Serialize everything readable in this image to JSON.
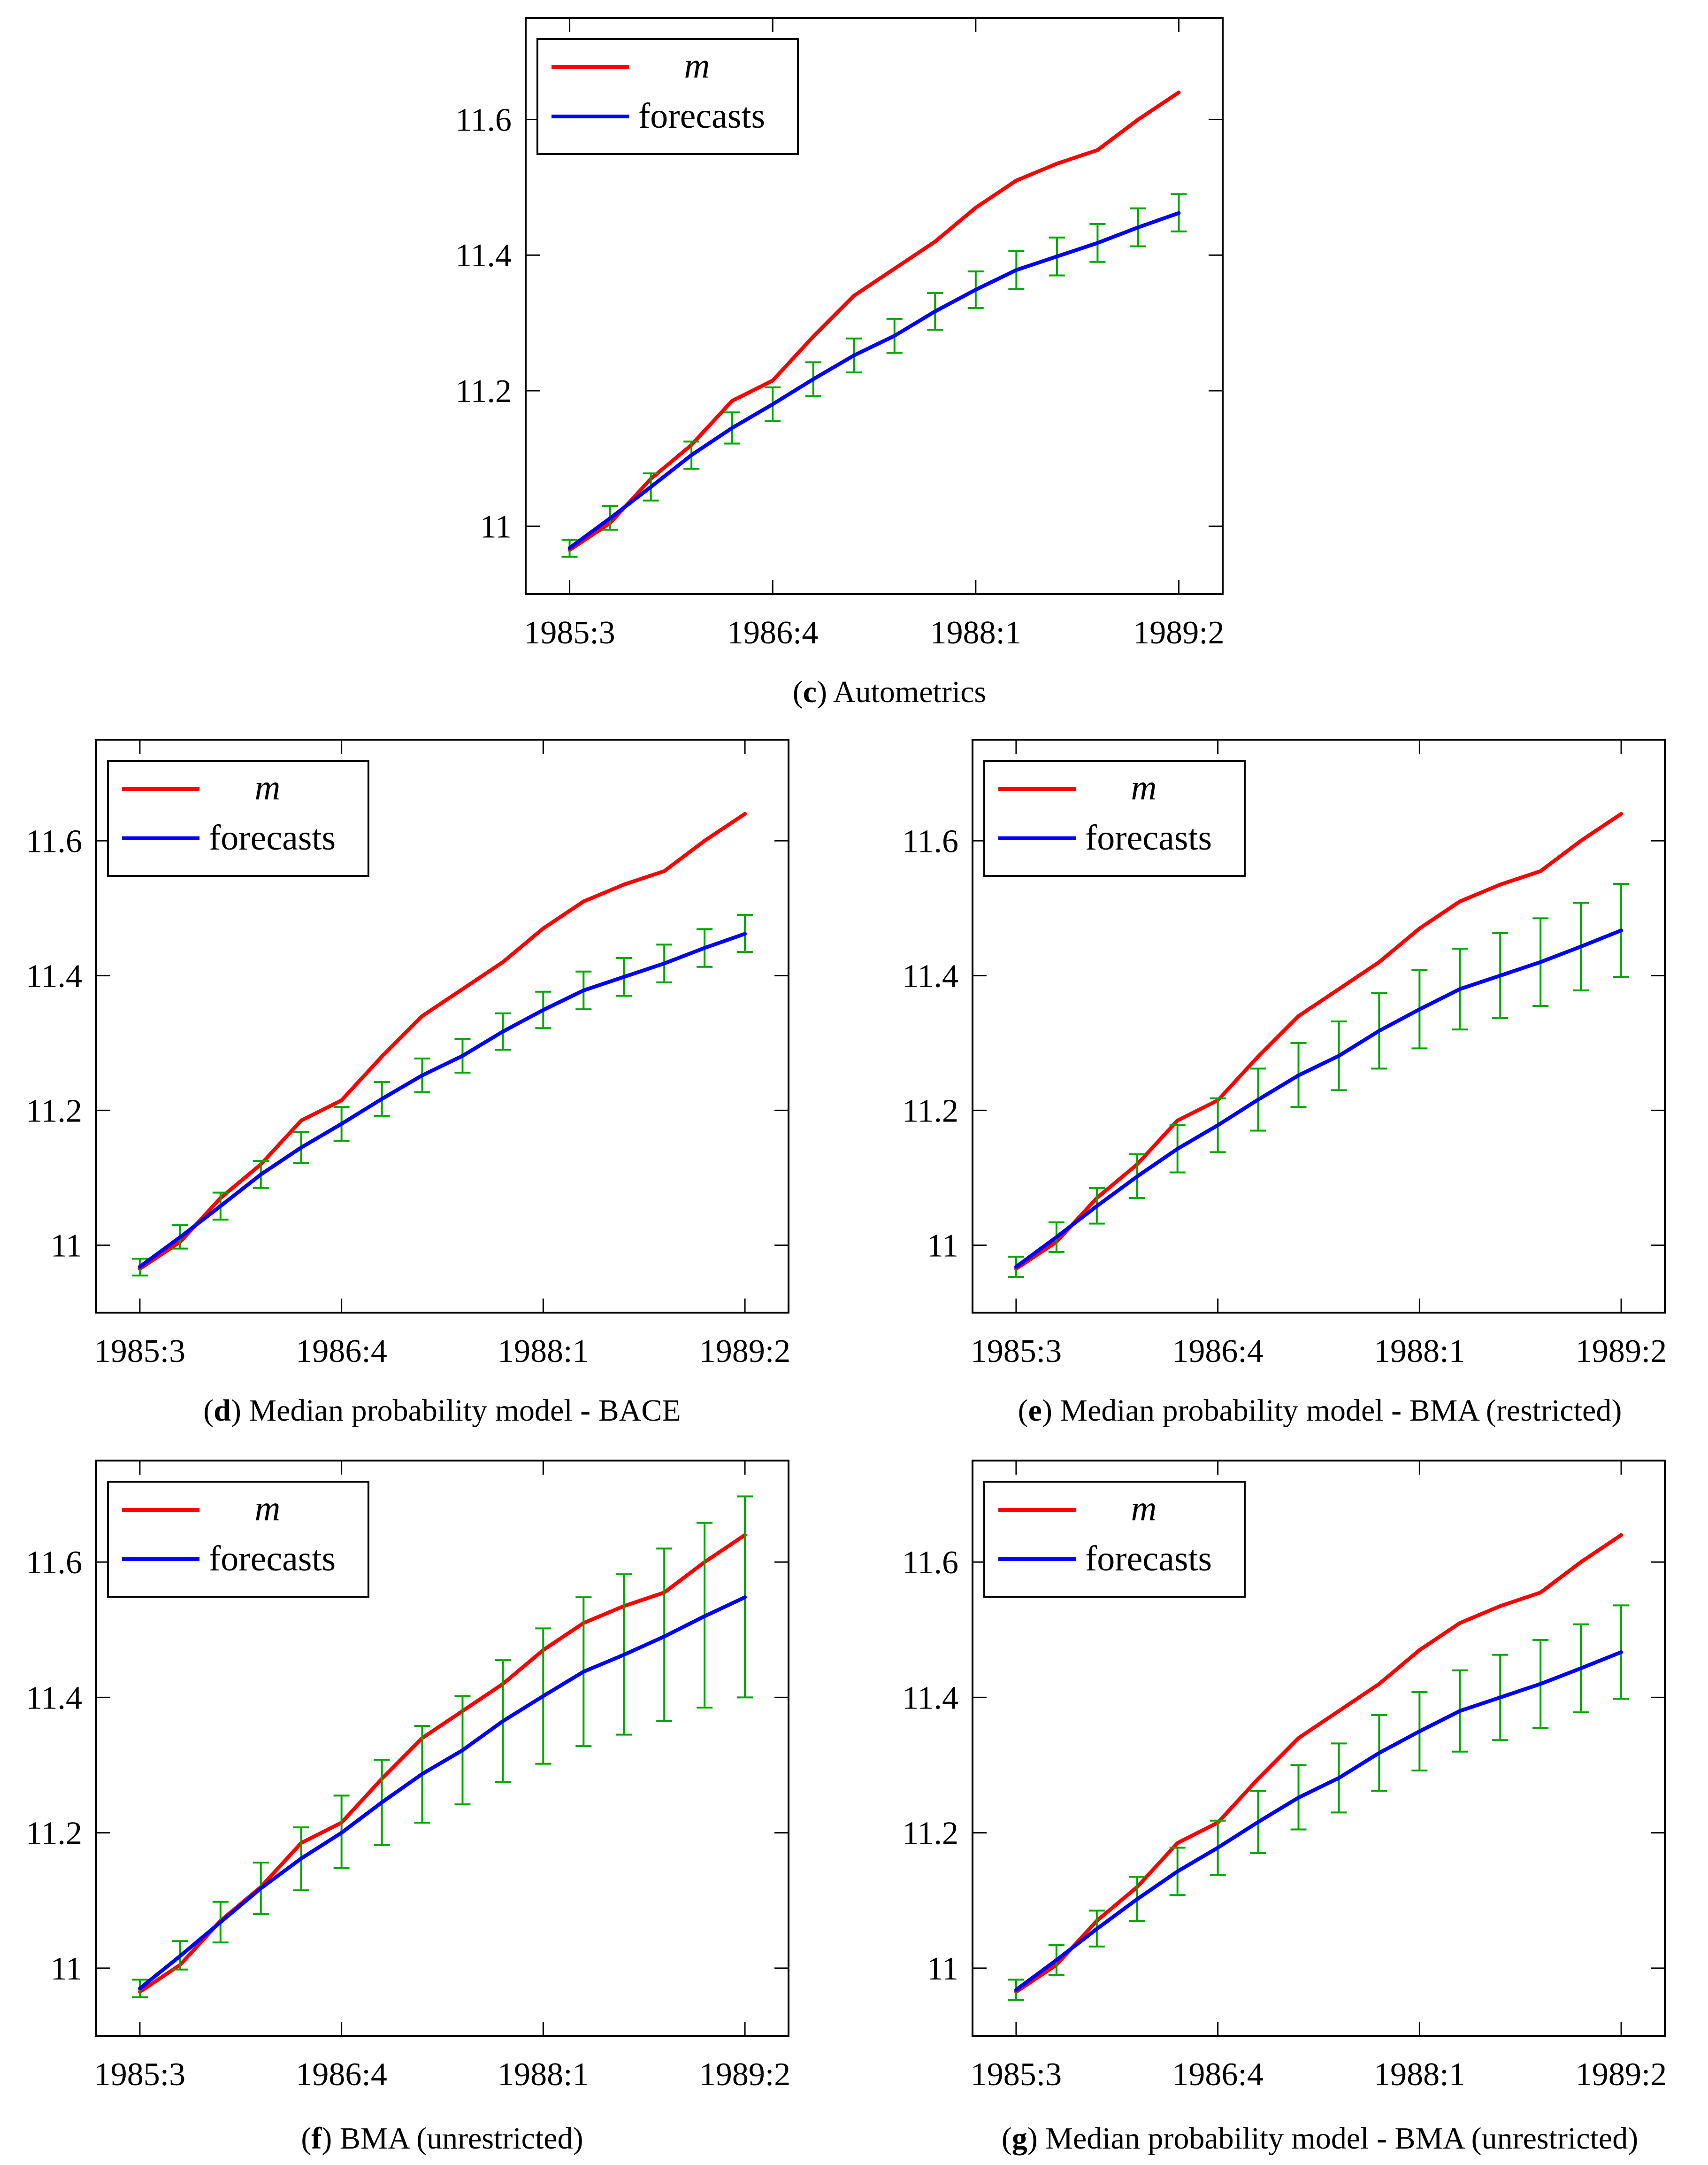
{
  "chart_data": [
    {
      "id": "c",
      "type": "line",
      "caption_letter": "c",
      "caption_text": "Autometrics",
      "x_tick_labels": [
        "1985:3",
        "1986:4",
        "1988:1",
        "1989:2"
      ],
      "y_tick_labels": [
        "11",
        "11.2",
        "11.4",
        "11.6"
      ],
      "y_ticks": [
        11,
        11.2,
        11.4,
        11.6
      ],
      "ylim": [
        10.9,
        11.75
      ],
      "legend": [
        "m",
        "forecasts"
      ],
      "legend_position": "top-left",
      "series": [
        {
          "name": "m",
          "color": "#ff0000",
          "values": [
            10.965,
            11.005,
            11.07,
            11.12,
            11.185,
            11.215,
            11.28,
            11.34,
            11.38,
            11.42,
            11.47,
            11.51,
            11.535,
            11.555,
            11.6,
            11.64
          ]
        },
        {
          "name": "forecasts",
          "color": "#0000ff",
          "values": [
            10.968,
            11.012,
            11.058,
            11.105,
            11.145,
            11.18,
            11.217,
            11.252,
            11.281,
            11.317,
            11.349,
            11.378,
            11.398,
            11.418,
            11.441,
            11.462
          ],
          "lower": [
            10.955,
            10.995,
            11.038,
            11.085,
            11.122,
            11.155,
            11.192,
            11.227,
            11.256,
            11.29,
            11.322,
            11.35,
            11.37,
            11.39,
            11.413,
            11.435
          ],
          "upper": [
            10.98,
            11.03,
            11.078,
            11.125,
            11.168,
            11.205,
            11.242,
            11.277,
            11.306,
            11.344,
            11.376,
            11.406,
            11.426,
            11.446,
            11.469,
            11.49
          ]
        }
      ]
    },
    {
      "id": "d",
      "type": "line",
      "caption_letter": "d",
      "caption_text": "Median probability model - BACE",
      "x_tick_labels": [
        "1985:3",
        "1986:4",
        "1988:1",
        "1989:2"
      ],
      "y_tick_labels": [
        "11",
        "11.2",
        "11.4",
        "11.6"
      ],
      "y_ticks": [
        11,
        11.2,
        11.4,
        11.6
      ],
      "ylim": [
        10.9,
        11.75
      ],
      "legend": [
        "m",
        "forecasts"
      ],
      "legend_position": "top-left",
      "series": [
        {
          "name": "m",
          "color": "#ff0000",
          "values": [
            10.965,
            11.005,
            11.07,
            11.12,
            11.185,
            11.215,
            11.28,
            11.34,
            11.38,
            11.42,
            11.47,
            11.51,
            11.535,
            11.555,
            11.6,
            11.64
          ]
        },
        {
          "name": "forecasts",
          "color": "#0000ff",
          "values": [
            10.968,
            11.012,
            11.058,
            11.105,
            11.145,
            11.18,
            11.217,
            11.252,
            11.281,
            11.317,
            11.349,
            11.378,
            11.398,
            11.418,
            11.441,
            11.462
          ],
          "lower": [
            10.955,
            10.995,
            11.038,
            11.085,
            11.122,
            11.155,
            11.192,
            11.227,
            11.256,
            11.29,
            11.322,
            11.35,
            11.37,
            11.39,
            11.413,
            11.435
          ],
          "upper": [
            10.98,
            11.03,
            11.078,
            11.125,
            11.168,
            11.205,
            11.242,
            11.277,
            11.306,
            11.344,
            11.376,
            11.406,
            11.426,
            11.446,
            11.469,
            11.49
          ]
        }
      ]
    },
    {
      "id": "e",
      "type": "line",
      "caption_letter": "e",
      "caption_text": "Median probability model - BMA (restricted)",
      "x_tick_labels": [
        "1985:3",
        "1986:4",
        "1988:1",
        "1989:2"
      ],
      "y_tick_labels": [
        "11",
        "11.2",
        "11.4",
        "11.6"
      ],
      "y_ticks": [
        11,
        11.2,
        11.4,
        11.6
      ],
      "ylim": [
        10.9,
        11.75
      ],
      "legend": [
        "m",
        "forecasts"
      ],
      "legend_position": "top-left",
      "series": [
        {
          "name": "m",
          "color": "#ff0000",
          "values": [
            10.965,
            11.005,
            11.07,
            11.12,
            11.185,
            11.215,
            11.28,
            11.34,
            11.38,
            11.42,
            11.47,
            11.51,
            11.535,
            11.555,
            11.6,
            11.64
          ]
        },
        {
          "name": "forecasts",
          "color": "#0000ff",
          "values": [
            10.968,
            11.012,
            11.058,
            11.102,
            11.143,
            11.178,
            11.216,
            11.252,
            11.281,
            11.318,
            11.35,
            11.38,
            11.4,
            11.42,
            11.443,
            11.467
          ],
          "lower": [
            10.953,
            10.99,
            11.032,
            11.07,
            11.108,
            11.138,
            11.17,
            11.205,
            11.23,
            11.262,
            11.292,
            11.32,
            11.337,
            11.355,
            11.378,
            11.398
          ],
          "upper": [
            10.983,
            11.034,
            11.085,
            11.135,
            11.178,
            11.218,
            11.262,
            11.3,
            11.332,
            11.374,
            11.408,
            11.44,
            11.463,
            11.485,
            11.508,
            11.536
          ]
        }
      ]
    },
    {
      "id": "f",
      "type": "line",
      "caption_letter": "f",
      "caption_text": "BMA (unrestricted)",
      "x_tick_labels": [
        "1985:3",
        "1986:4",
        "1988:1",
        "1989:2"
      ],
      "y_tick_labels": [
        "11",
        "11.2",
        "11.4",
        "11.6"
      ],
      "y_ticks": [
        11,
        11.2,
        11.4,
        11.6
      ],
      "ylim": [
        10.9,
        11.75
      ],
      "legend": [
        "m",
        "forecasts"
      ],
      "legend_position": "top-left",
      "series": [
        {
          "name": "m",
          "color": "#ff0000",
          "values": [
            10.965,
            11.005,
            11.07,
            11.12,
            11.185,
            11.215,
            11.28,
            11.34,
            11.38,
            11.42,
            11.47,
            11.51,
            11.535,
            11.555,
            11.6,
            11.64
          ]
        },
        {
          "name": "forecasts",
          "color": "#0000ff",
          "values": [
            10.97,
            11.018,
            11.068,
            11.118,
            11.162,
            11.2,
            11.245,
            11.287,
            11.322,
            11.365,
            11.402,
            11.438,
            11.463,
            11.49,
            11.52,
            11.548
          ],
          "lower": [
            10.957,
            10.998,
            11.038,
            11.08,
            11.115,
            11.148,
            11.182,
            11.215,
            11.242,
            11.275,
            11.302,
            11.328,
            11.345,
            11.365,
            11.385,
            11.4
          ],
          "upper": [
            10.983,
            11.04,
            11.098,
            11.156,
            11.208,
            11.255,
            11.308,
            11.358,
            11.402,
            11.455,
            11.502,
            11.548,
            11.582,
            11.62,
            11.658,
            11.697
          ]
        }
      ]
    },
    {
      "id": "g",
      "type": "line",
      "caption_letter": "g",
      "caption_text": "Median probability model - BMA (unrestricted)",
      "x_tick_labels": [
        "1985:3",
        "1986:4",
        "1988:1",
        "1989:2"
      ],
      "y_tick_labels": [
        "11",
        "11.2",
        "11.4",
        "11.6"
      ],
      "y_ticks": [
        11,
        11.2,
        11.4,
        11.6
      ],
      "ylim": [
        10.9,
        11.75
      ],
      "legend": [
        "m",
        "forecasts"
      ],
      "legend_position": "top-left",
      "series": [
        {
          "name": "m",
          "color": "#ff0000",
          "values": [
            10.965,
            11.005,
            11.07,
            11.12,
            11.185,
            11.215,
            11.28,
            11.34,
            11.38,
            11.42,
            11.47,
            11.51,
            11.535,
            11.555,
            11.6,
            11.64
          ]
        },
        {
          "name": "forecasts",
          "color": "#0000ff",
          "values": [
            10.968,
            11.012,
            11.058,
            11.102,
            11.143,
            11.178,
            11.216,
            11.252,
            11.281,
            11.318,
            11.35,
            11.38,
            11.4,
            11.42,
            11.443,
            11.467
          ],
          "lower": [
            10.953,
            10.99,
            11.032,
            11.07,
            11.108,
            11.138,
            11.17,
            11.205,
            11.23,
            11.262,
            11.292,
            11.32,
            11.337,
            11.355,
            11.378,
            11.398
          ],
          "upper": [
            10.983,
            11.034,
            11.085,
            11.135,
            11.178,
            11.218,
            11.262,
            11.3,
            11.332,
            11.374,
            11.408,
            11.44,
            11.463,
            11.485,
            11.508,
            11.536
          ]
        }
      ]
    }
  ]
}
